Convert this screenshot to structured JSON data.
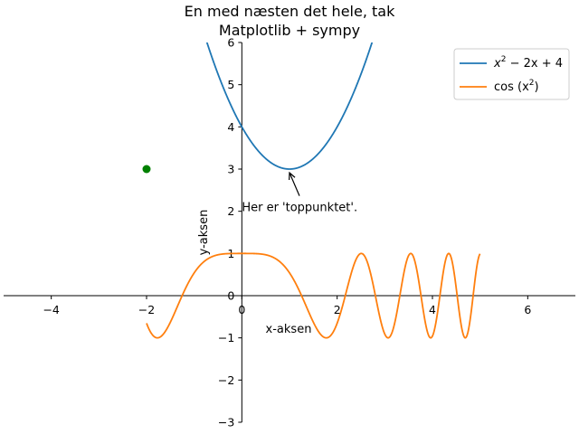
{
  "chart_data": {
    "type": "line",
    "title": [
      "En med næsten det hele, tak",
      "Matplotlib + sympy"
    ],
    "xlabel": "x-aksen",
    "ylabel": "y-aksen",
    "xlim": [
      -5,
      7
    ],
    "ylim": [
      -3,
      6
    ],
    "xticks": [
      -4,
      -2,
      0,
      2,
      4,
      6
    ],
    "yticks": [
      -3,
      -2,
      -1,
      0,
      1,
      2,
      3,
      4,
      5,
      6
    ],
    "xtick_labels": [
      "−4",
      "−2",
      "0",
      "2",
      "4",
      "6"
    ],
    "ytick_labels": [
      "−3",
      "−2",
      "−1",
      "0",
      "1",
      "2",
      "3",
      "4",
      "5",
      "6"
    ],
    "grid": false,
    "legend_position": "top-right",
    "series": [
      {
        "name_base": "x",
        "name_sup": "2",
        "name_rest": " − 2x + 4",
        "expression": "x^2 - 2x + 4",
        "color": "#1f77b4",
        "domain": [
          -2,
          5
        ]
      },
      {
        "name_base": "cos (x",
        "name_sup": "2",
        "name_rest": ")",
        "expression": "cos(x^2)",
        "color": "#ff7f0e",
        "domain": [
          -2,
          5
        ]
      }
    ],
    "points": [
      {
        "x": -2,
        "y": 3,
        "color": "#008000"
      }
    ],
    "annotation": {
      "text": "Her er 'toppunktet'.",
      "point": [
        1,
        3
      ],
      "text_pos": [
        0,
        2
      ]
    }
  }
}
